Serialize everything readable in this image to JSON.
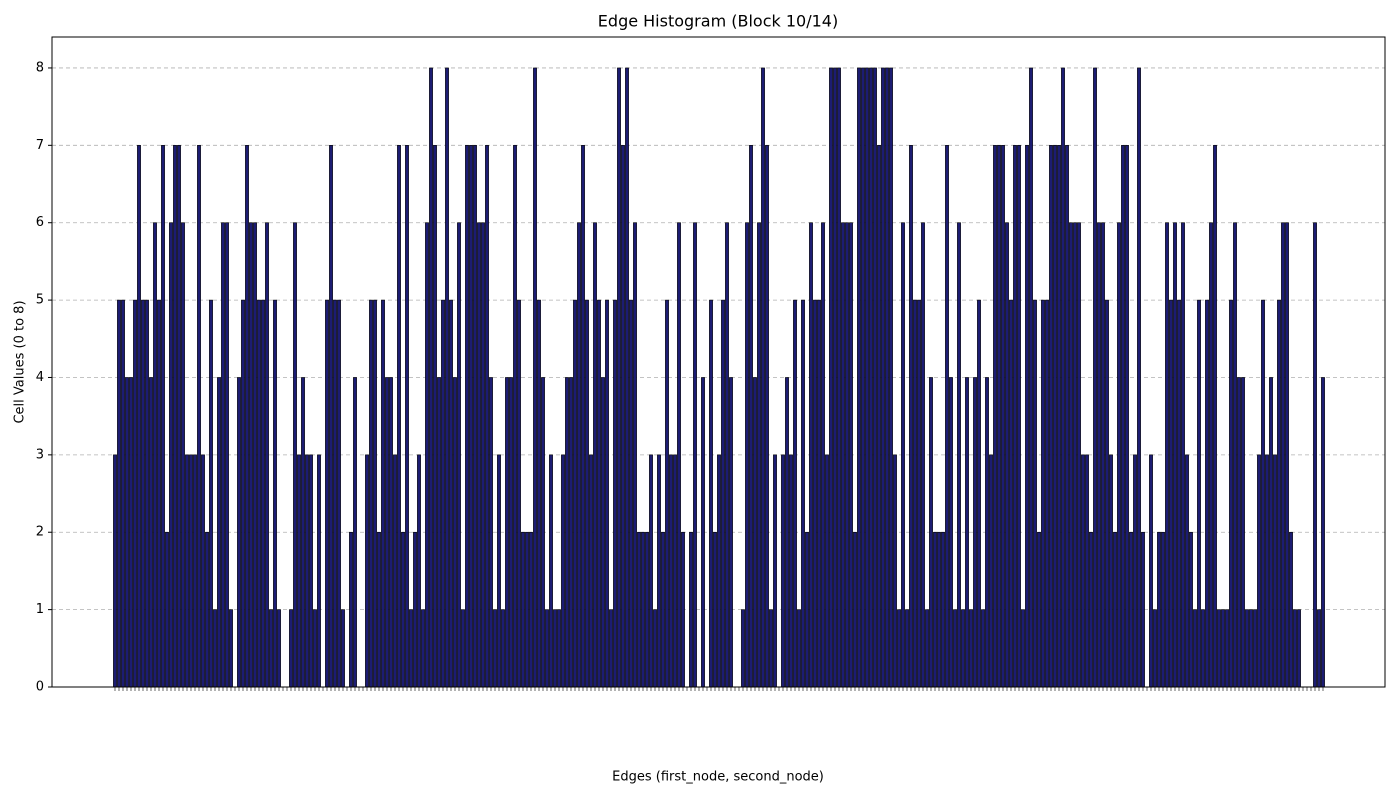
{
  "chart_data": {
    "type": "bar",
    "title": "Edge Histogram (Block 10/14)",
    "x_label": "Edges (first_node, second_node)",
    "y_label": "Cell Values (0 to 8)",
    "color": "#1c1c72",
    "edgecolor": "#000000",
    "grid": true,
    "ylim": [
      0,
      8.4
    ],
    "yticks": [
      0,
      1,
      2,
      3,
      4,
      5,
      6,
      7,
      8
    ],
    "categories": [
      null,
      null,
      null,
      null,
      null,
      null,
      null,
      null,
      null,
      null,
      null,
      null,
      null,
      null,
      null,
      null,
      null,
      null,
      null,
      null,
      null,
      null,
      null,
      null,
      null,
      null,
      null,
      null,
      null,
      null,
      null,
      null,
      null,
      null,
      null,
      null,
      null,
      null,
      null,
      null,
      null,
      null,
      null,
      null,
      null,
      null,
      null,
      null,
      null,
      null,
      null,
      null,
      null,
      null,
      null,
      null,
      null,
      null,
      null,
      null,
      null,
      null,
      null,
      null,
      null,
      null,
      null,
      null,
      null,
      null,
      null,
      null,
      null,
      null,
      null,
      null,
      null,
      null,
      null,
      null,
      null,
      null,
      null,
      null,
      null,
      null,
      null,
      null,
      null,
      null,
      null,
      null,
      null,
      null,
      null,
      null,
      null,
      null,
      null,
      null,
      null,
      null,
      null,
      null,
      null,
      null,
      null,
      null,
      null,
      null,
      null,
      null,
      null,
      null,
      null,
      null,
      null,
      null,
      null,
      null,
      null,
      null,
      null,
      null,
      null,
      null,
      null,
      null,
      null,
      null,
      null,
      null,
      null,
      null,
      null,
      null,
      null,
      null,
      null,
      null,
      null,
      null,
      null,
      null,
      null,
      null,
      null,
      null,
      null,
      null,
      null,
      null,
      null,
      null,
      null,
      null,
      null,
      null,
      null,
      null,
      null,
      null,
      null,
      null,
      null,
      null,
      null,
      null,
      null,
      null,
      null,
      null,
      null,
      null,
      null,
      null,
      null,
      null,
      null,
      null,
      null,
      null,
      null,
      null,
      null,
      null,
      null,
      null,
      null,
      null,
      null,
      null,
      null,
      null,
      null,
      null,
      null,
      null,
      null,
      null,
      null,
      null,
      null,
      null,
      null,
      null,
      null,
      null,
      null,
      null,
      null,
      null,
      null,
      null,
      null,
      null,
      null,
      null,
      null,
      null,
      null,
      null,
      null,
      null,
      null,
      null,
      null,
      null,
      null,
      null,
      null,
      null,
      null,
      null,
      null,
      null,
      null,
      null,
      null,
      null,
      null,
      null,
      null,
      null,
      null,
      null,
      null,
      null,
      null,
      null,
      null,
      null,
      null,
      null,
      null,
      null,
      null,
      null,
      null,
      null,
      null,
      null,
      null,
      null,
      null,
      null,
      null,
      null,
      null,
      null,
      null,
      null,
      null,
      null,
      null,
      null,
      null,
      null,
      null,
      null,
      null,
      null,
      null,
      null,
      null,
      null,
      null,
      null,
      null,
      null,
      null,
      null,
      null,
      null,
      null,
      null,
      null,
      null,
      null,
      null,
      null,
      null,
      null
    ],
    "values": [
      3,
      5,
      5,
      4,
      4,
      5,
      7,
      5,
      5,
      4,
      6,
      5,
      7,
      2,
      6,
      7,
      7,
      6,
      3,
      3,
      3,
      7,
      3,
      2,
      5,
      1,
      4,
      6,
      6,
      1,
      0,
      4,
      5,
      7,
      6,
      6,
      5,
      5,
      6,
      1,
      5,
      1,
      0,
      0,
      1,
      6,
      3,
      4,
      3,
      3,
      1,
      3,
      0,
      5,
      7,
      5,
      5,
      1,
      0,
      2,
      4,
      0,
      0,
      3,
      5,
      5,
      2,
      5,
      4,
      4,
      3,
      7,
      2,
      7,
      1,
      2,
      3,
      1,
      6,
      8,
      7,
      4,
      5,
      8,
      5,
      4,
      6,
      1,
      7,
      7,
      7,
      6,
      6,
      7,
      4,
      1,
      3,
      1,
      4,
      4,
      7,
      5,
      2,
      2,
      2,
      8,
      5,
      4,
      1,
      3,
      1,
      1,
      3,
      4,
      4,
      5,
      6,
      7,
      5,
      3,
      6,
      5,
      4,
      5,
      1,
      5,
      8,
      7,
      8,
      5,
      6,
      2,
      2,
      2,
      3,
      1,
      3,
      2,
      5,
      3,
      3,
      6,
      2,
      0,
      2,
      6,
      0,
      4,
      0,
      5,
      2,
      3,
      5,
      6,
      4,
      0,
      0,
      1,
      6,
      7,
      4,
      6,
      8,
      7,
      1,
      3,
      0,
      3,
      4,
      3,
      5,
      1,
      5,
      2,
      6,
      5,
      5,
      6,
      3,
      8,
      8,
      8,
      6,
      6,
      6,
      2,
      8,
      8,
      8,
      8,
      8,
      7,
      8,
      8,
      8,
      3,
      1,
      6,
      1,
      7,
      5,
      5,
      6,
      1,
      4,
      2,
      2,
      2,
      7,
      4,
      1,
      6,
      1,
      4,
      1,
      4,
      5,
      1,
      4,
      3,
      7,
      7,
      7,
      6,
      5,
      7,
      7,
      1,
      7,
      8,
      5,
      2,
      5,
      5,
      7,
      7,
      7,
      8,
      7,
      6,
      6,
      6,
      3,
      3,
      2,
      8,
      6,
      6,
      5,
      3,
      2,
      6,
      7,
      7,
      2,
      3,
      8,
      2,
      0,
      3,
      1,
      2,
      2,
      6,
      5,
      6,
      5,
      6,
      3,
      2,
      1,
      5,
      1,
      5,
      6,
      7,
      1,
      1,
      1,
      5,
      6,
      4,
      4,
      1,
      1,
      1,
      3,
      5,
      3,
      4,
      3,
      5,
      6,
      6,
      2,
      1,
      1,
      0,
      0,
      0,
      6,
      1,
      4
    ]
  }
}
